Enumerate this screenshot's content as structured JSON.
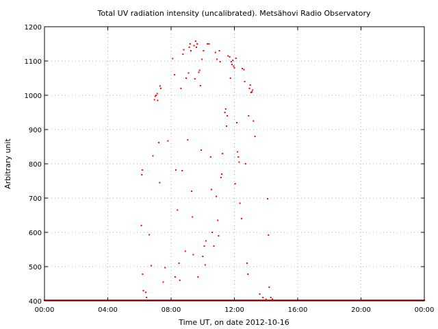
{
  "chart_data": {
    "type": "scatter",
    "title": "Total UV radiation intensity (uncalibrated). Metsähovi Radio Observatory",
    "xlabel": "Time UT, on date 2012-10-16",
    "ylabel": "Arbitrary unit",
    "xlim": [
      0,
      24
    ],
    "ylim": [
      400,
      1200
    ],
    "x_ticks": [
      0,
      4,
      8,
      12,
      16,
      20,
      24
    ],
    "x_tick_labels": [
      "00:00",
      "04:00",
      "08:00",
      "12:00",
      "16:00",
      "20:00",
      "00:00"
    ],
    "y_ticks": [
      400,
      500,
      600,
      700,
      800,
      900,
      1000,
      1100,
      1200
    ],
    "y_tick_labels": [
      "400",
      "500",
      "600",
      "700",
      "800",
      "900",
      "1000",
      "1100",
      "1200"
    ],
    "grid": true,
    "marker_color": "#ff0000",
    "series": [
      {
        "baseline_x_range": [
          0,
          24
        ],
        "baseline_y": 400,
        "x": [
          6.12,
          6.15,
          6.18,
          6.2,
          6.25,
          6.4,
          6.45,
          6.62,
          6.75,
          6.85,
          6.95,
          7.0,
          7.05,
          7.12,
          7.15,
          7.22,
          7.28,
          7.3,
          7.35,
          7.5,
          7.62,
          7.8,
          8.1,
          8.22,
          8.25,
          8.3,
          8.4,
          8.5,
          8.55,
          8.62,
          8.7,
          8.75,
          8.8,
          8.9,
          8.95,
          9.05,
          9.1,
          9.15,
          9.2,
          9.25,
          9.3,
          9.35,
          9.4,
          9.45,
          9.5,
          9.55,
          9.6,
          9.65,
          9.7,
          9.75,
          9.8,
          9.85,
          9.9,
          9.95,
          10.0,
          10.05,
          10.1,
          10.15,
          10.2,
          10.3,
          10.4,
          10.5,
          10.55,
          10.6,
          10.7,
          10.8,
          10.85,
          10.9,
          10.95,
          11.0,
          11.05,
          11.1,
          11.15,
          11.2,
          11.25,
          11.4,
          11.45,
          11.5,
          11.55,
          11.6,
          11.7,
          11.75,
          11.8,
          11.85,
          11.9,
          11.95,
          12.0,
          12.05,
          12.1,
          12.15,
          12.2,
          12.25,
          12.3,
          12.35,
          12.45,
          12.5,
          12.6,
          12.65,
          12.7,
          12.8,
          12.85,
          12.9,
          12.95,
          13.0,
          13.05,
          13.1,
          13.15,
          13.2,
          13.3,
          13.6,
          13.8,
          14.0,
          14.1,
          14.15,
          14.2,
          14.3,
          14.4
        ],
        "y": [
          620,
          768,
          782,
          478,
          430,
          425,
          410,
          593,
          503,
          823,
          987,
          997,
          1000,
          1005,
          985,
          862,
          745,
          1027,
          1020,
          455,
          497,
          867,
          1107,
          1060,
          470,
          782,
          665,
          510,
          460,
          1020,
          780,
          1120,
          1133,
          545,
          1050,
          870,
          1065,
          1140,
          1150,
          1130,
          720,
          645,
          535,
          1145,
          1048,
          1158,
          1140,
          1150,
          470,
          1067,
          1073,
          1028,
          840,
          1105,
          530,
          1130,
          560,
          505,
          575,
          1150,
          1150,
          820,
          725,
          600,
          560,
          1125,
          705,
          1105,
          635,
          590,
          1130,
          1098,
          760,
          770,
          830,
          950,
          960,
          910,
          940,
          1115,
          1112,
          1050,
          1098,
          1090,
          1102,
          1085,
          1080,
          742,
          1108,
          920,
          835,
          820,
          805,
          685,
          640,
          1078,
          1075,
          1040,
          800,
          510,
          478,
          940,
          1020,
          1030,
          1008,
          1010,
          1015,
          925,
          880,
          420,
          410,
          405,
          698,
          592,
          440,
          410,
          405
        ],
        "name": ""
      }
    ]
  }
}
